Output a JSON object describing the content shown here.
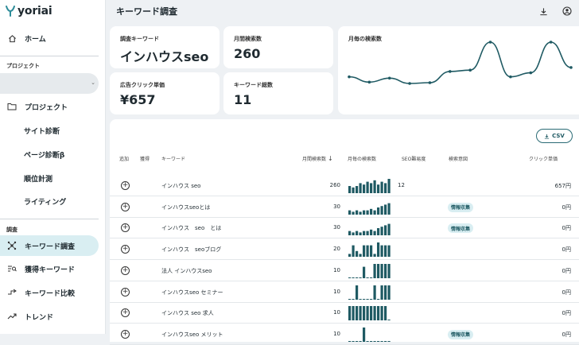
{
  "app": {
    "logo_text": "yoriai",
    "page_title": "キーワード調査"
  },
  "sidebar": {
    "home": "ホーム",
    "project_section": "プロジェクト",
    "project_select_value": "",
    "items": [
      {
        "label": "プロジェクト",
        "icon": "folder-icon"
      },
      {
        "label": "サイト診断"
      },
      {
        "label": "ページ診断β"
      },
      {
        "label": "順位計測"
      },
      {
        "label": "ライティング"
      }
    ],
    "research_section": "調査",
    "research_items": [
      {
        "label": "キーワード調査",
        "icon": "network-icon",
        "active": true
      },
      {
        "label": "獲得キーワード",
        "icon": "list-search-icon"
      },
      {
        "label": "キーワード比較",
        "icon": "compare-icon"
      },
      {
        "label": "トレンド",
        "icon": "trend-icon"
      }
    ]
  },
  "header_icons": [
    "download-icon",
    "account-icon"
  ],
  "summary": {
    "keyword_label": "調査キーワード",
    "keyword_value": "インハウスseo",
    "volume_label": "月間検索数",
    "volume_value": "260",
    "cpc_label": "広告クリック単価",
    "cpc_value": "¥657",
    "total_label": "キーワード総数",
    "total_value": "11",
    "trend_label": "月毎の検索数"
  },
  "chart_data": {
    "type": "line",
    "title": "月毎の検索数",
    "values": [
      40,
      20,
      35,
      15,
      18,
      60,
      65,
      170,
      40,
      55,
      170,
      75
    ],
    "color": "#1f5a63"
  },
  "table": {
    "csv_label": "CSV",
    "headers": [
      "追加",
      "獲得",
      "キーワード",
      "月間検索数",
      "月毎の検索数",
      "SEO難易度",
      "検索意図",
      "クリック単価"
    ],
    "rows": [
      {
        "keyword": "インハウス seo",
        "volume": "260",
        "seo": "12",
        "intent": "",
        "cpc": "657円",
        "spark": [
          5,
          4,
          5,
          7,
          6,
          8,
          7,
          9,
          6,
          8,
          7,
          10
        ]
      },
      {
        "keyword": "インハウスseoとは",
        "volume": "30",
        "seo": "",
        "intent": "情報収集",
        "cpc": "0円",
        "spark": [
          3,
          2,
          3,
          2,
          3,
          3,
          4,
          3,
          5,
          6,
          7,
          8
        ]
      },
      {
        "keyword": "インハウス　seo　とは",
        "volume": "30",
        "seo": "",
        "intent": "情報収集",
        "cpc": "0円",
        "spark": [
          3,
          2,
          3,
          2,
          3,
          3,
          4,
          3,
          5,
          6,
          7,
          8
        ]
      },
      {
        "keyword": "インハウス　seoブログ",
        "volume": "20",
        "seo": "",
        "intent": "",
        "cpc": "0円",
        "spark": [
          2,
          8,
          4,
          2,
          8,
          8,
          8,
          2,
          10,
          8,
          8,
          8
        ]
      },
      {
        "keyword": "法人 インハウスseo",
        "volume": "10",
        "seo": "",
        "intent": "",
        "cpc": "0円",
        "spark": [
          0,
          0,
          0,
          0,
          8,
          0,
          0,
          10,
          10,
          10,
          10,
          10
        ]
      },
      {
        "keyword": "インハウスseo セミナー",
        "volume": "10",
        "seo": "",
        "intent": "",
        "cpc": "0円",
        "spark": [
          0,
          0,
          10,
          0,
          0,
          0,
          0,
          10,
          0,
          10,
          10,
          10
        ]
      },
      {
        "keyword": "インハウス seo 求人",
        "volume": "10",
        "seo": "",
        "intent": "",
        "cpc": "0円",
        "spark": [
          10,
          10,
          10,
          10,
          10,
          10,
          10,
          10,
          10,
          10,
          10,
          0
        ]
      },
      {
        "keyword": "インハウスseo メリット",
        "volume": "10",
        "seo": "",
        "intent": "情報収集",
        "cpc": "0円",
        "spark": [
          0,
          0,
          0,
          0,
          10,
          0,
          0,
          0,
          0,
          0,
          0,
          0
        ]
      }
    ]
  },
  "colors": {
    "accent": "#1f5a63",
    "active_bg": "#d9eef2",
    "tag_bg": "#d9eef2"
  }
}
